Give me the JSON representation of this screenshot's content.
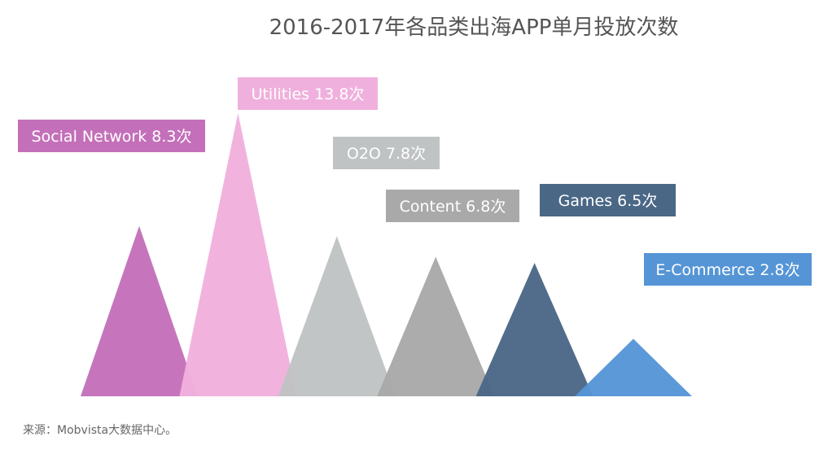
{
  "chart_data": {
    "type": "bar",
    "title": "2016-2017年各品类出海APP单月投放次数",
    "categories": [
      "Social Network",
      "Utilities",
      "O2O",
      "Content",
      "Games",
      "E-Commerce"
    ],
    "values": [
      8.3,
      13.8,
      7.8,
      6.8,
      6.5,
      2.8
    ],
    "labels": [
      "Social Network 8.3次",
      "Utilities 13.8次",
      "O2O 7.8次",
      "Content 6.8次",
      "Games 6.5次",
      "E-Commerce 2.8次"
    ],
    "colors": [
      "#c46fb9",
      "#f0b0dd",
      "#bfc3c4",
      "#a9a9a9",
      "#4a6786",
      "#5595d6"
    ],
    "mark": "triangle",
    "grid": false,
    "legend": "none",
    "source": "来源：Mobvista大数据中心。"
  }
}
